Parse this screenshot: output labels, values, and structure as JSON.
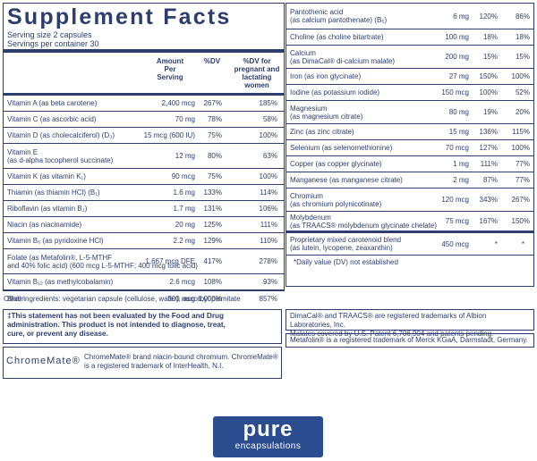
{
  "title": "Supplement Facts",
  "serving_size": "Serving size  2 capsules",
  "servings_per_container": "Servings per container  30",
  "headers": {
    "amount": "Amount\nPer\nServing",
    "dv": "%DV",
    "dv_preg": "%DV for\npregnant and\nlactating women"
  },
  "left_rows": [
    {
      "name": "Vitamin A (as beta carotene)",
      "amount": "2,400 mcg",
      "dv": "267%",
      "dv_preg": "185%"
    },
    {
      "name": "Vitamin C (as ascorbic acid)",
      "amount": "70 mg",
      "dv": "78%",
      "dv_preg": "58%"
    },
    {
      "name": "Vitamin D (as cholecalciferol) (D₃)",
      "amount": "15 mcg (600 IU)",
      "dv": "75%",
      "dv_preg": "100%"
    },
    {
      "name": "Vitamin E\n(as d-alpha tocopherol succinate)",
      "amount": "12 mg",
      "dv": "80%",
      "dv_preg": "63%"
    },
    {
      "name": "Vitamin K (as vitamin K₁)",
      "amount": "90 mcg",
      "dv": "75%",
      "dv_preg": "100%"
    },
    {
      "name": "Thiamin (as thiamin HCl) (B₁)",
      "amount": "1.6 mg",
      "dv": "133%",
      "dv_preg": "114%"
    },
    {
      "name": "Riboflavin (as vitamin B₂)",
      "amount": "1.7 mg",
      "dv": "131%",
      "dv_preg": "106%"
    },
    {
      "name": "Niacin (as niacinamide)",
      "amount": "20 mg",
      "dv": "125%",
      "dv_preg": "111%"
    },
    {
      "name": "Vitamin B₆ (as pyridoxine HCl)",
      "amount": "2.2 mg",
      "dv": "129%",
      "dv_preg": "110%"
    },
    {
      "name": "Folate (as Metafolin®, L-5-MTHF\nand 40% folic acid) (600 mcg L-5-MTHF; 400 mcg folic acid)",
      "amount": "1,667 mcg DFE",
      "dv": "417%",
      "dv_preg": "278%"
    },
    {
      "name": "Vitamin B₁₂ (as methylcobalamin)",
      "amount": "2.6 mcg",
      "dv": "108%",
      "dv_preg": "93%"
    },
    {
      "name": "Biotin",
      "amount": "300 mcg",
      "dv": "1,000%",
      "dv_preg": "857%"
    }
  ],
  "right_rows": [
    {
      "name": "Pantothenic acid\n(as calcium pantothenate) (B₅)",
      "amount": "6 mg",
      "dv": "120%",
      "dv_preg": "86%"
    },
    {
      "name": "Choline (as choline bitartrate)",
      "amount": "100 mg",
      "dv": "18%",
      "dv_preg": "18%"
    },
    {
      "name": "Calcium\n(as DimaCal® di-calcium malate)",
      "amount": "200 mg",
      "dv": "15%",
      "dv_preg": "15%"
    },
    {
      "name": "Iron (as iron glycinate)",
      "amount": "27 mg",
      "dv": "150%",
      "dv_preg": "100%"
    },
    {
      "name": "Iodine (as potassium iodide)",
      "amount": "150 mcg",
      "dv": "100%",
      "dv_preg": "52%"
    },
    {
      "name": "Magnesium\n(as magnesium citrate)",
      "amount": "80 mg",
      "dv": "19%",
      "dv_preg": "20%"
    },
    {
      "name": "Zinc (as zinc citrate)",
      "amount": "15 mg",
      "dv": "136%",
      "dv_preg": "115%"
    },
    {
      "name": "Selenium (as selenomethionine)",
      "amount": "70 mcg",
      "dv": "127%",
      "dv_preg": "100%"
    },
    {
      "name": "Copper (as copper glycinate)",
      "amount": "1 mg",
      "dv": "111%",
      "dv_preg": "77%"
    },
    {
      "name": "Manganese (as manganese citrate)",
      "amount": "2 mg",
      "dv": "87%",
      "dv_preg": "77%"
    },
    {
      "name": "Chromium\n(as chromium polynicotinate)",
      "amount": "120 mcg",
      "dv": "343%",
      "dv_preg": "267%"
    },
    {
      "name": "Molybdenum\n(as TRAACS® molybdenum glycinate chelate)",
      "amount": "75 mcg",
      "dv": "167%",
      "dv_preg": "150%"
    }
  ],
  "carotenoid": {
    "name": "Proprietary mixed carotenoid blend\n(as lutein, lycopene, zeaxanthin)",
    "amount": "450 mcg",
    "dv": "*",
    "dv_preg": "*"
  },
  "dv_note": "*Daily value (DV) not established",
  "other_ingredients": "Other ingredients: vegetarian capsule (cellulose, water), ascorbyl palmitate",
  "fda_statement": "‡This statement has not been evaluated by the Food and Drug\nadministration. This product is not intended to diagnose, treat,\ncure, or prevent any disease.",
  "trademark_albion": "DimaCal® and TRAACS® are registered trademarks of Albion Laboratories, Inc.\nMalates covered by U.S. Patent 6,706,904 and patents pending.",
  "trademark_merck": "Metafolin® is a registered trademark of Merck KGaA, Darmstadt, Germany.",
  "chromemate_logo": "ChromeMate®",
  "chromemate_text": "ChromeMate® brand niacin-bound chromium. ChromeMate®\nis a registered trademark of InterHealth, N.I.",
  "brand": {
    "name": "pure",
    "sub": "encapsulations"
  },
  "colors": {
    "text": "#2c3e6d",
    "brand": "#2b4c8e"
  }
}
